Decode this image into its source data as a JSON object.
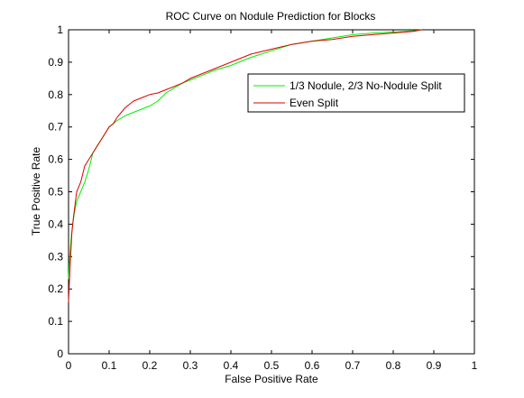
{
  "chart_data": {
    "type": "line",
    "title": "ROC Curve on Nodule Prediction for Blocks",
    "xlabel": "False Positive Rate",
    "ylabel": "True Positive Rate",
    "xlim": [
      0,
      1
    ],
    "ylim": [
      0,
      1
    ],
    "xticks": [
      0,
      0.1,
      0.2,
      0.3,
      0.4,
      0.5,
      0.6,
      0.7,
      0.8,
      0.9,
      1
    ],
    "yticks": [
      0,
      0.1,
      0.2,
      0.3,
      0.4,
      0.5,
      0.6,
      0.7,
      0.8,
      0.9,
      1
    ],
    "xtick_labels": [
      "0",
      "0.1",
      "0.2",
      "0.3",
      "0.4",
      "0.5",
      "0.6",
      "0.7",
      "0.8",
      "0.9",
      "1"
    ],
    "ytick_labels": [
      "0",
      "0.1",
      "0.2",
      "0.3",
      "0.4",
      "0.5",
      "0.6",
      "0.7",
      "0.8",
      "0.9",
      "1"
    ],
    "grid": false,
    "legend_position": "top-right",
    "series": [
      {
        "name": "1/3 Nodule, 2/3 No-Nodule Split",
        "color": "#00ee00",
        "x": [
          0,
          0.003,
          0.006,
          0.01,
          0.015,
          0.02,
          0.03,
          0.04,
          0.05,
          0.06,
          0.07,
          0.08,
          0.09,
          0.1,
          0.12,
          0.14,
          0.16,
          0.18,
          0.2,
          0.22,
          0.24,
          0.26,
          0.28,
          0.3,
          0.33,
          0.36,
          0.4,
          0.45,
          0.5,
          0.55,
          0.6,
          0.65,
          0.7,
          0.75,
          0.8,
          0.85,
          0.87
        ],
        "y": [
          0.23,
          0.3,
          0.35,
          0.4,
          0.44,
          0.47,
          0.5,
          0.53,
          0.57,
          0.62,
          0.64,
          0.66,
          0.68,
          0.7,
          0.72,
          0.735,
          0.745,
          0.755,
          0.765,
          0.78,
          0.805,
          0.82,
          0.835,
          0.845,
          0.86,
          0.875,
          0.89,
          0.915,
          0.935,
          0.955,
          0.965,
          0.975,
          0.985,
          0.99,
          0.993,
          0.997,
          1.0
        ]
      },
      {
        "name": "Even Split",
        "color": "#dd0000",
        "x": [
          0,
          0.002,
          0.005,
          0.008,
          0.012,
          0.016,
          0.02,
          0.03,
          0.04,
          0.05,
          0.06,
          0.07,
          0.08,
          0.09,
          0.1,
          0.11,
          0.12,
          0.13,
          0.14,
          0.15,
          0.16,
          0.18,
          0.2,
          0.22,
          0.24,
          0.26,
          0.28,
          0.3,
          0.33,
          0.36,
          0.4,
          0.45,
          0.5,
          0.55,
          0.6,
          0.65,
          0.7,
          0.75,
          0.8,
          0.85,
          0.87
        ],
        "y": [
          0.16,
          0.22,
          0.3,
          0.37,
          0.42,
          0.46,
          0.5,
          0.53,
          0.58,
          0.6,
          0.62,
          0.64,
          0.66,
          0.68,
          0.7,
          0.71,
          0.73,
          0.745,
          0.76,
          0.77,
          0.78,
          0.79,
          0.8,
          0.805,
          0.815,
          0.825,
          0.835,
          0.85,
          0.865,
          0.88,
          0.9,
          0.925,
          0.94,
          0.955,
          0.965,
          0.97,
          0.98,
          0.985,
          0.99,
          0.995,
          1.0
        ]
      }
    ]
  }
}
